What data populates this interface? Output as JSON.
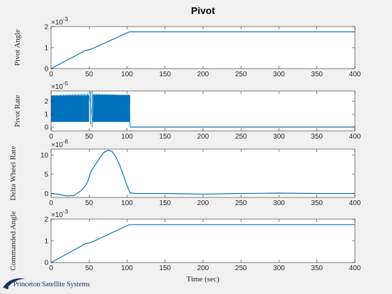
{
  "figure": {
    "title": "Pivot",
    "xlabel": "Time (sec)",
    "logo_text": "Princeton Satellite Systems",
    "line_color": "#0072BD"
  },
  "chart_data": [
    {
      "type": "line",
      "ylabel": "Pivot Angle",
      "exponent": "-3",
      "xlim": [
        0,
        400
      ],
      "ylim": [
        0,
        2
      ],
      "xticks": [
        "0",
        "50",
        "100",
        "150",
        "200",
        "250",
        "300",
        "350",
        "400"
      ],
      "yticks": [
        "0",
        "1",
        "2"
      ],
      "series": [
        {
          "x": [
            0,
            45,
            50,
            55,
            103,
            400
          ],
          "y": [
            0,
            0.86,
            0.9,
            0.96,
            1.75,
            1.75
          ]
        }
      ]
    },
    {
      "type": "line",
      "ylabel": "Pivot Rate",
      "exponent": "-5",
      "xlim": [
        0,
        400
      ],
      "ylim": [
        -0.3,
        2.8
      ],
      "xticks": [
        "0",
        "50",
        "100",
        "150",
        "200",
        "250",
        "300",
        "350",
        "400"
      ],
      "yticks": [
        "0",
        "1",
        "2"
      ],
      "oscillation": {
        "x_start": 0,
        "x_end": 104,
        "y_low": 0.4,
        "y_high": 2.45,
        "gap": [
          50,
          55
        ]
      },
      "series": [
        {
          "x": [
            104,
            400
          ],
          "y": [
            0,
            0
          ]
        }
      ]
    },
    {
      "type": "line",
      "ylabel": "Delta Wheel Rate",
      "exponent": "-8",
      "xlim": [
        0,
        400
      ],
      "ylim": [
        -1,
        11.5
      ],
      "xticks": [
        "0",
        "50",
        "100",
        "150",
        "200",
        "250",
        "300",
        "350",
        "400"
      ],
      "yticks": [
        "0",
        "5",
        "10"
      ],
      "series": [
        {
          "x": [
            0,
            10,
            20,
            30,
            40,
            45,
            48,
            52,
            55,
            60,
            65,
            70,
            75,
            80,
            85,
            90,
            95,
            100,
            104,
            110,
            150,
            200,
            250,
            300,
            350,
            400
          ],
          "y": [
            0,
            -0.2,
            -0.6,
            -0.5,
            0.8,
            2,
            3,
            5.5,
            6.5,
            8,
            9.5,
            10.7,
            11.2,
            10.9,
            9.6,
            7.5,
            4.8,
            2,
            0.2,
            0,
            0,
            -0.15,
            0,
            0.1,
            0,
            0
          ]
        }
      ]
    },
    {
      "type": "line",
      "ylabel": "Commanded Angle",
      "exponent": "-3",
      "xlim": [
        0,
        400
      ],
      "ylim": [
        0,
        2
      ],
      "xticks": [
        "0",
        "50",
        "100",
        "150",
        "200",
        "250",
        "300",
        "350",
        "400"
      ],
      "yticks": [
        "0",
        "1",
        "2"
      ],
      "series": [
        {
          "x": [
            0,
            45,
            50,
            55,
            103,
            400
          ],
          "y": [
            0,
            0.86,
            0.9,
            0.96,
            1.75,
            1.75
          ]
        }
      ]
    }
  ]
}
